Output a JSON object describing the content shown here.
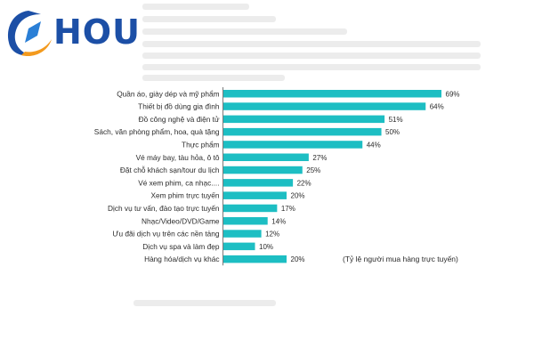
{
  "logo": {
    "text": "HOU"
  },
  "colors": {
    "bar": "#1dbec3",
    "axis": "#7a7a7a",
    "logo_blue": "#1c4fa6",
    "logo_orange": "#f39a1e"
  },
  "chart_data": {
    "type": "bar",
    "orientation": "horizontal",
    "title": "",
    "xlabel": "",
    "ylabel": "",
    "categories": [
      "Quần áo, giày dép và mỹ phẩm",
      "Thiết bị đồ dùng gia đình",
      "Đồ công nghệ và điện tử",
      "Sách, văn phòng phẩm, hoa, quà tặng",
      "Thực phẩm",
      "Vé máy bay, tàu hỏa, ô tô",
      "Đặt chỗ khách sạn/tour du lịch",
      "Vé xem phim, ca nhạc....",
      "Xem phim trực tuyến",
      "Dịch vụ tư vấn, đào tạo trực tuyến",
      "Nhạc/Video/DVD/Game",
      "Ưu đãi dịch vụ trên các nền tảng",
      "Dịch vụ spa và làm đẹp",
      "Hàng hóa/dịch vụ khác"
    ],
    "values": [
      69,
      64,
      51,
      50,
      44,
      27,
      25,
      22,
      20,
      17,
      14,
      12,
      10,
      20
    ],
    "value_labels": [
      "69%",
      "64%",
      "51%",
      "50%",
      "44%",
      "27%",
      "25%",
      "22%",
      "20%",
      "17%",
      "14%",
      "12%",
      "10%",
      "20%"
    ],
    "xlim": [
      0,
      69
    ],
    "annotation": "(Tỷ lệ người mua hàng trực tuyến)"
  }
}
